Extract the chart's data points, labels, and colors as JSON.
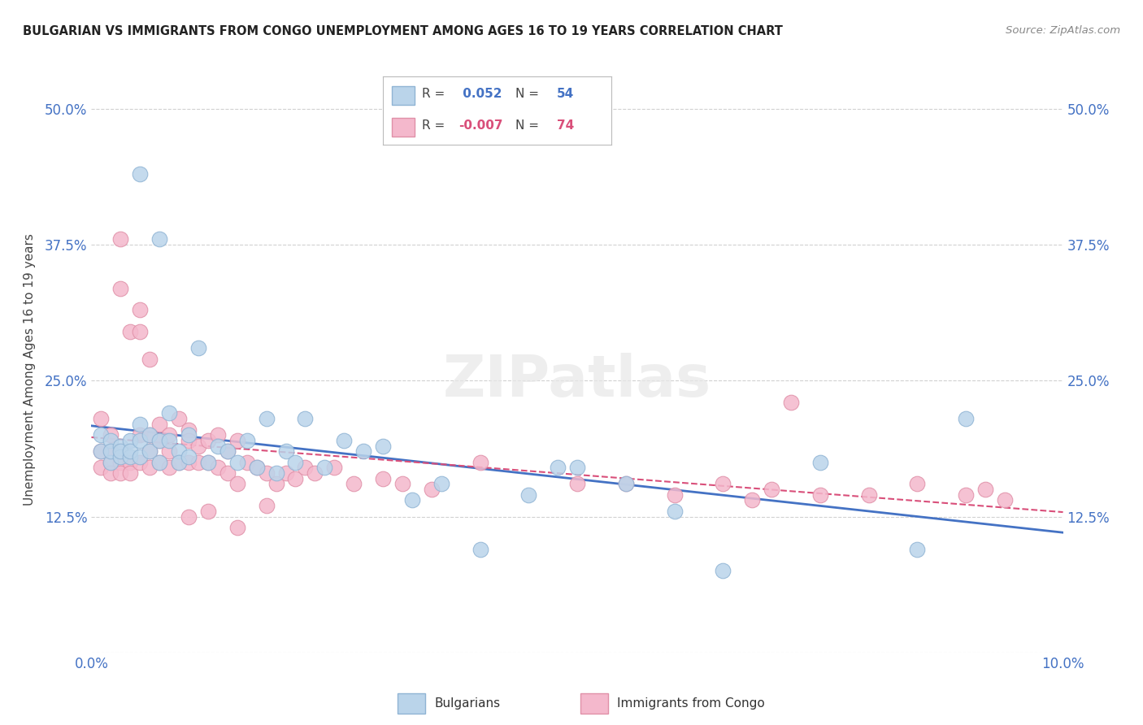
{
  "title": "BULGARIAN VS IMMIGRANTS FROM CONGO UNEMPLOYMENT AMONG AGES 16 TO 19 YEARS CORRELATION CHART",
  "source": "Source: ZipAtlas.com",
  "ylabel": "Unemployment Among Ages 16 to 19 years",
  "xlim": [
    0.0,
    0.1
  ],
  "ylim": [
    0.0,
    0.52
  ],
  "yticks": [
    0.0,
    0.125,
    0.25,
    0.375,
    0.5
  ],
  "yticklabels_left": [
    "",
    "12.5%",
    "25.0%",
    "37.5%",
    "50.0%"
  ],
  "yticklabels_right": [
    "",
    "12.5%",
    "25.0%",
    "37.5%",
    "50.0%"
  ],
  "xtick_left": "0.0%",
  "xtick_right": "10.0%",
  "legend1_r": "0.052",
  "legend1_n": "54",
  "legend2_r": "-0.007",
  "legend2_n": "74",
  "scatter1_face": "#bad4ea",
  "scatter1_edge": "#90b4d4",
  "scatter2_face": "#f4b8cc",
  "scatter2_edge": "#e090a8",
  "line1_color": "#4472C4",
  "line2_color": "#d94f7a",
  "bg_color": "#ffffff",
  "grid_color": "#cccccc",
  "title_color": "#222222",
  "tick_color": "#4472C4",
  "ylabel_color": "#444444",
  "legend_text_color": "#444444",
  "legend_num_color": "#4472C4",
  "source_color": "#888888",
  "bulgarians_x": [
    0.001,
    0.001,
    0.002,
    0.002,
    0.002,
    0.003,
    0.003,
    0.003,
    0.004,
    0.004,
    0.004,
    0.005,
    0.005,
    0.005,
    0.005,
    0.006,
    0.006,
    0.007,
    0.007,
    0.007,
    0.008,
    0.008,
    0.009,
    0.009,
    0.01,
    0.01,
    0.011,
    0.012,
    0.013,
    0.014,
    0.015,
    0.016,
    0.017,
    0.018,
    0.019,
    0.02,
    0.021,
    0.022,
    0.024,
    0.026,
    0.028,
    0.03,
    0.033,
    0.036,
    0.04,
    0.045,
    0.048,
    0.05,
    0.055,
    0.06,
    0.065,
    0.075,
    0.085,
    0.09
  ],
  "bulgarians_y": [
    0.2,
    0.185,
    0.195,
    0.175,
    0.185,
    0.19,
    0.18,
    0.185,
    0.195,
    0.18,
    0.185,
    0.21,
    0.195,
    0.18,
    0.44,
    0.2,
    0.185,
    0.38,
    0.195,
    0.175,
    0.22,
    0.195,
    0.185,
    0.175,
    0.2,
    0.18,
    0.28,
    0.175,
    0.19,
    0.185,
    0.175,
    0.195,
    0.17,
    0.215,
    0.165,
    0.185,
    0.175,
    0.215,
    0.17,
    0.195,
    0.185,
    0.19,
    0.14,
    0.155,
    0.095,
    0.145,
    0.17,
    0.17,
    0.155,
    0.13,
    0.075,
    0.175,
    0.095,
    0.215
  ],
  "congo_x": [
    0.001,
    0.001,
    0.001,
    0.002,
    0.002,
    0.002,
    0.002,
    0.003,
    0.003,
    0.003,
    0.003,
    0.004,
    0.004,
    0.004,
    0.005,
    0.005,
    0.005,
    0.005,
    0.006,
    0.006,
    0.006,
    0.006,
    0.007,
    0.007,
    0.007,
    0.008,
    0.008,
    0.008,
    0.009,
    0.009,
    0.01,
    0.01,
    0.01,
    0.011,
    0.011,
    0.012,
    0.012,
    0.013,
    0.013,
    0.014,
    0.014,
    0.015,
    0.015,
    0.016,
    0.017,
    0.018,
    0.019,
    0.02,
    0.021,
    0.022,
    0.023,
    0.025,
    0.027,
    0.03,
    0.032,
    0.035,
    0.04,
    0.05,
    0.055,
    0.06,
    0.065,
    0.07,
    0.075,
    0.08,
    0.085,
    0.09,
    0.092,
    0.094,
    0.072,
    0.068,
    0.01,
    0.012,
    0.015,
    0.018
  ],
  "congo_y": [
    0.215,
    0.185,
    0.17,
    0.2,
    0.185,
    0.175,
    0.165,
    0.38,
    0.335,
    0.175,
    0.165,
    0.295,
    0.175,
    0.165,
    0.315,
    0.295,
    0.2,
    0.175,
    0.27,
    0.2,
    0.185,
    0.17,
    0.21,
    0.195,
    0.175,
    0.2,
    0.185,
    0.17,
    0.215,
    0.175,
    0.205,
    0.195,
    0.175,
    0.19,
    0.175,
    0.195,
    0.175,
    0.2,
    0.17,
    0.185,
    0.165,
    0.195,
    0.155,
    0.175,
    0.17,
    0.165,
    0.155,
    0.165,
    0.16,
    0.17,
    0.165,
    0.17,
    0.155,
    0.16,
    0.155,
    0.15,
    0.175,
    0.155,
    0.155,
    0.145,
    0.155,
    0.15,
    0.145,
    0.145,
    0.155,
    0.145,
    0.15,
    0.14,
    0.23,
    0.14,
    0.125,
    0.13,
    0.115,
    0.135
  ]
}
